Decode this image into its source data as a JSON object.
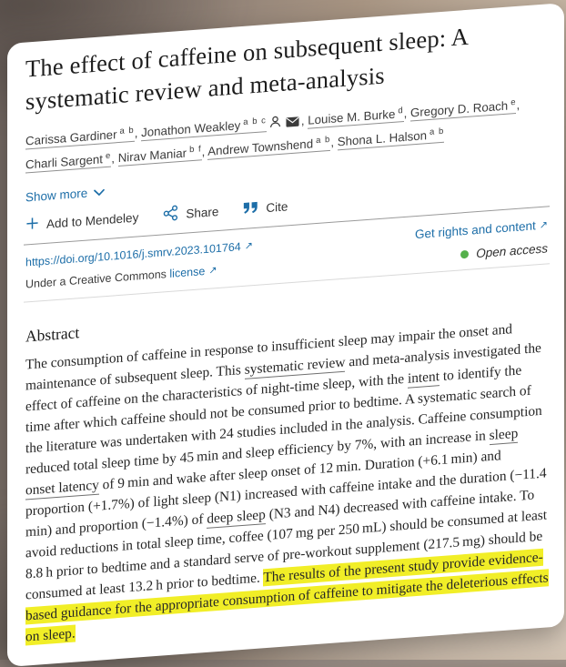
{
  "article": {
    "title_line1": "The effect of caffeine on subsequent sleep: A",
    "title_line2": "systematic review and meta-analysis"
  },
  "authors": {
    "list": [
      {
        "name": "Carissa Gardiner",
        "sup": "a b",
        "icons": []
      },
      {
        "name": "Jonathon Weakley",
        "sup": "a b c",
        "icons": [
          "person-icon",
          "envelope-icon"
        ]
      },
      {
        "name": "Louise M. Burke",
        "sup": "d",
        "icons": []
      },
      {
        "name": "Gregory D. Roach",
        "sup": "e",
        "icons": []
      },
      {
        "name": "Charli Sargent",
        "sup": "e",
        "icons": []
      },
      {
        "name": "Nirav Maniar",
        "sup": "b f",
        "icons": []
      },
      {
        "name": "Andrew Townshend",
        "sup": "a b",
        "icons": []
      },
      {
        "name": "Shona L. Halson",
        "sup": "a b",
        "icons": []
      }
    ],
    "show_more_label": "Show more"
  },
  "actions": {
    "add_to_mendeley": "Add to Mendeley",
    "share": "Share",
    "cite": "Cite"
  },
  "links": {
    "doi": "https://doi.org/10.1016/j.smrv.2023.101764",
    "cc_prefix": "Under a Creative Commons",
    "cc_link": "license",
    "rights": "Get rights and content",
    "open_access": "Open access"
  },
  "icons": {
    "external_link_arrow": "↗"
  },
  "abstract": {
    "heading": "Abstract",
    "segments": [
      {
        "style": "plain",
        "text": "The consumption of caffeine in response to insufficient sleep may impair the onset and maintenance of subsequent sleep. This "
      },
      {
        "style": "term",
        "text": "systematic review"
      },
      {
        "style": "plain",
        "text": " and meta-analysis investigated the effect of caffeine on the characteristics of night-time sleep, with the "
      },
      {
        "style": "term",
        "text": "intent"
      },
      {
        "style": "plain",
        "text": " to identify the time after which caffeine should not be consumed prior to bedtime. A systematic search of the literature was undertaken with 24 studies included in the analysis. Caffeine consumption reduced total sleep time by 45 min and sleep efficiency by 7%, with an increase in "
      },
      {
        "style": "term",
        "text": "sleep onset latency"
      },
      {
        "style": "plain",
        "text": " of 9 min and wake after sleep onset of 12 min. Duration (+6.1 min) and proportion (+1.7%) of light sleep (N1) increased with caffeine intake and the duration (−11.4 min) and proportion (−1.4%) of "
      },
      {
        "style": "term",
        "text": "deep sleep"
      },
      {
        "style": "plain",
        "text": " (N3 and N4) decreased with caffeine intake. To avoid reductions in total sleep time, coffee (107 mg per 250 mL) should be consumed at least 8.8 h prior to bedtime and a standard serve of pre-workout supplement (217.5 mg) should be consumed at least 13.2 h prior to bedtime. "
      },
      {
        "style": "highlight",
        "text": "The results of the present study provide evidence-based guidance for the appropriate consumption of caffeine to mitigate the deleterious effects on sleep."
      }
    ]
  },
  "colors": {
    "link_blue": "#1d6ea8",
    "open_access_green": "#55b04b",
    "highlight_yellow": "#f1ee27"
  }
}
